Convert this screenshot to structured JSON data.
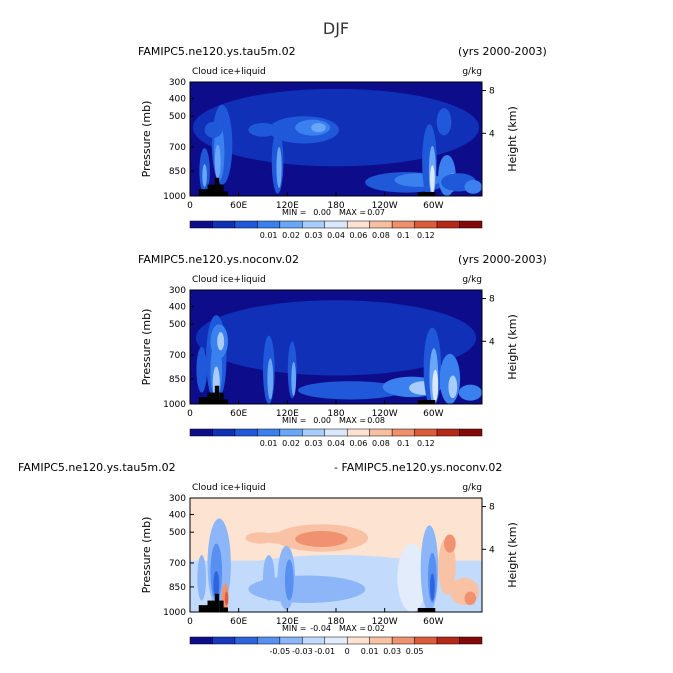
{
  "figure_title": "DJF",
  "chart_data": [
    {
      "type": "heatmap",
      "case_name": "FAMIPC5.ne120.ys.tau5m.02",
      "years": "(yrs 2000-2003)",
      "variable": "Cloud ice+liquid",
      "units": "g/kg",
      "ylabel": "Pressure (mb)",
      "y2label": "Height (km)",
      "yticks": [
        "300",
        "400",
        "500",
        "700",
        "850",
        "1000"
      ],
      "y2ticks": [
        "8",
        "4"
      ],
      "xticks": [
        "0",
        "60E",
        "120E",
        "180",
        "120W",
        "60W"
      ],
      "stats": {
        "min_label": "MIN =",
        "min": "0.00",
        "max_label": "MAX =",
        "max": "0.07"
      },
      "colorbar_labels": [
        "0.01",
        "0.02",
        "0.03",
        "0.04",
        "0.06",
        "0.08",
        "0.1",
        "0.12"
      ],
      "cmap": "abs"
    },
    {
      "type": "heatmap",
      "case_name": "FAMIPC5.ne120.ys.noconv.02",
      "years": "(yrs 2000-2003)",
      "variable": "Cloud ice+liquid",
      "units": "g/kg",
      "ylabel": "Pressure (mb)",
      "y2label": "Height (km)",
      "yticks": [
        "300",
        "400",
        "500",
        "700",
        "850",
        "1000"
      ],
      "y2ticks": [
        "8",
        "4"
      ],
      "xticks": [
        "0",
        "60E",
        "120E",
        "180",
        "120W",
        "60W"
      ],
      "stats": {
        "min_label": "MIN =",
        "min": "0.00",
        "max_label": "MAX =",
        "max": "0.08"
      },
      "colorbar_labels": [
        "0.01",
        "0.02",
        "0.03",
        "0.04",
        "0.06",
        "0.08",
        "0.1",
        "0.12"
      ],
      "cmap": "abs"
    },
    {
      "type": "heatmap",
      "case_name": "FAMIPC5.ne120.ys.tau5m.02",
      "years": "- FAMIPC5.ne120.ys.noconv.02",
      "variable": "Cloud ice+liquid",
      "units": "g/kg",
      "ylabel": "Pressure (mb)",
      "y2label": "Height (km)",
      "yticks": [
        "300",
        "400",
        "500",
        "700",
        "850",
        "1000"
      ],
      "y2ticks": [
        "8",
        "4"
      ],
      "xticks": [
        "0",
        "60E",
        "120E",
        "180",
        "120W",
        "60W"
      ],
      "stats": {
        "min_label": "MIN =",
        "min": "-0.04",
        "max_label": "MAX =",
        "max": "0.02"
      },
      "colorbar_labels": [
        "-0.05",
        "-0.03",
        "-0.01",
        "0",
        "0.01",
        "0.03",
        "0.05"
      ],
      "cmap": "diff"
    }
  ],
  "colormaps": {
    "abs": [
      "#0d0d8c",
      "#1030b8",
      "#1f58d8",
      "#3a80ee",
      "#6aa6f8",
      "#a8cdfc",
      "#dbe8fb",
      "#fbe2d3",
      "#f7bea0",
      "#ef906a",
      "#dc5c3c",
      "#b82818",
      "#860808"
    ],
    "diff": [
      "#0d0d8c",
      "#1838c0",
      "#2e64e0",
      "#5890f2",
      "#8cb6f8",
      "#c2dafc",
      "#e2ecfb",
      "#fde3d2",
      "#f9c2a4",
      "#f09270",
      "#dc5c3c",
      "#b82818",
      "#860808"
    ]
  }
}
